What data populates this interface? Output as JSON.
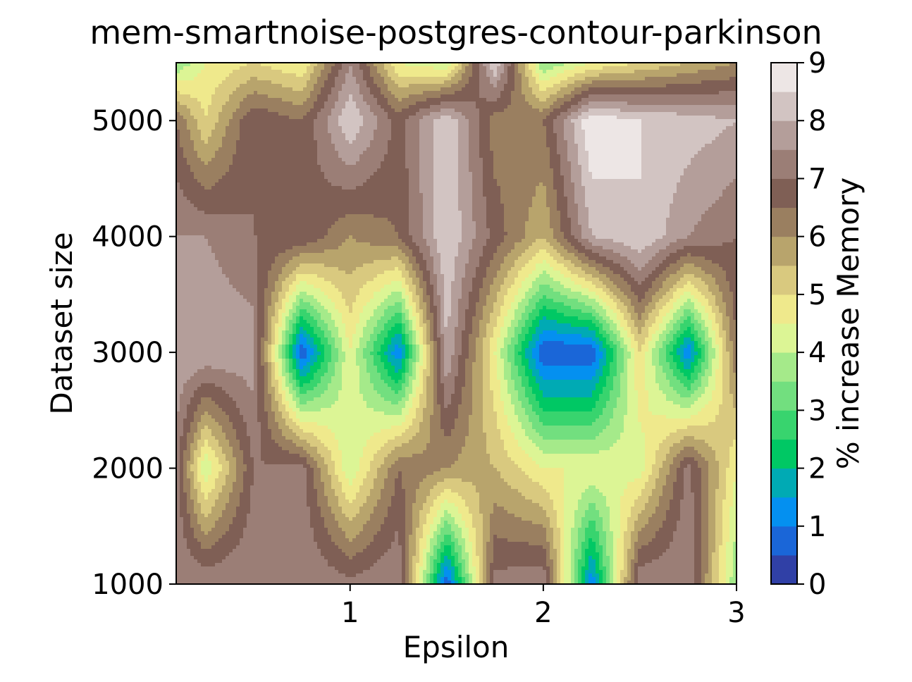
{
  "chart_data": {
    "type": "heatmap",
    "title": "mem-smartnoise-postgres-contour-parkinson",
    "xlabel": "Epsilon",
    "ylabel": "Dataset size",
    "colorbar_label": "% increase Memory",
    "xlim": [
      0.1,
      3.0
    ],
    "ylim": [
      1000,
      5500
    ],
    "x_ticks": [
      1,
      2,
      3
    ],
    "y_ticks": [
      1000,
      2000,
      3000,
      4000,
      5000
    ],
    "colorbar_ticks": [
      0,
      1,
      2,
      3,
      4,
      5,
      6,
      7,
      8,
      9
    ],
    "levels": [
      0,
      0.5,
      1,
      1.5,
      2,
      2.5,
      3,
      3.5,
      4,
      4.5,
      5,
      5.5,
      6,
      6.5,
      7,
      7.5,
      8,
      8.5,
      9
    ],
    "colormap": "terrain",
    "level_colors": [
      "#3040a6",
      "#1a66d8",
      "#0490f0",
      "#00aab4",
      "#00c864",
      "#38d46e",
      "#72df7f",
      "#a5ea8a",
      "#dcf595",
      "#efe98c",
      "#d9c97f",
      "#b8a46c",
      "#9a7f60",
      "#7f5f55",
      "#9b7e76",
      "#b49e9a",
      "#d2c4c2",
      "#ede6e5"
    ],
    "x": [
      0.1,
      0.25,
      0.5,
      0.75,
      1.0,
      1.25,
      1.5,
      1.75,
      2.0,
      2.25,
      2.5,
      2.75,
      3.0
    ],
    "y": [
      1000,
      2000,
      3000,
      4000,
      5000,
      5500
    ],
    "z": [
      [
        7.5,
        7.5,
        7.5,
        7.5,
        7.2,
        7.5,
        0.5,
        7.2,
        7.5,
        1.0,
        7.5,
        7.5,
        3.5
      ],
      [
        7.2,
        4.0,
        7.0,
        7.2,
        4.0,
        6.5,
        6.0,
        5.5,
        4.5,
        4.5,
        4.2,
        7.2,
        4.5
      ],
      [
        8.0,
        8.0,
        7.8,
        0.5,
        4.5,
        1.0,
        8.0,
        4.5,
        0.5,
        0.5,
        5.0,
        1.0,
        6.5
      ],
      [
        7.5,
        7.5,
        7.0,
        7.0,
        6.0,
        6.5,
        8.5,
        6.8,
        5.5,
        8.0,
        8.5,
        7.5,
        7.0
      ],
      [
        6.5,
        5.0,
        7.0,
        6.5,
        8.5,
        6.8,
        8.5,
        6.2,
        6.5,
        9.0,
        8.5,
        8.3,
        8.0
      ],
      [
        3.5,
        4.5,
        5.0,
        4.5,
        7.5,
        4.5,
        4.0,
        8.5,
        3.5,
        4.5,
        5.0,
        5.5,
        6.0
      ]
    ]
  }
}
